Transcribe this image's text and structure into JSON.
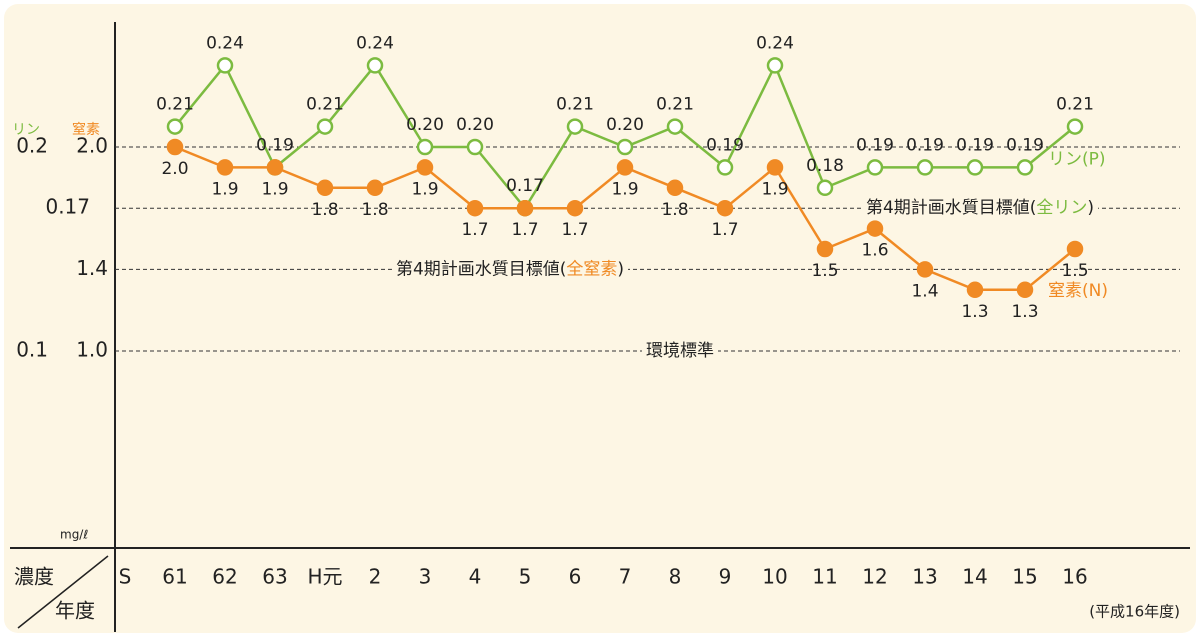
{
  "chart_data": {
    "type": "line",
    "y_axis_title": "窒素",
    "y2_axis_title": "リン",
    "unit": "mg/ℓ",
    "corner_top": "濃度",
    "corner_bottom": "年度",
    "footnote": "(平成16年度)",
    "categories": [
      "S",
      "61",
      "62",
      "63",
      "H元",
      "2",
      "3",
      "4",
      "5",
      "6",
      "7",
      "8",
      "9",
      "10",
      "11",
      "12",
      "13",
      "14",
      "15",
      "16"
    ],
    "ylim": [
      0,
      2.6
    ],
    "yticks": [
      {
        "value": 2,
        "label": "2.0"
      },
      1.4,
      {
        "value": 1,
        "label": "1.0"
      }
    ],
    "y2lim": [
      0,
      0.26
    ],
    "y2ticks": [
      0.2,
      0.17,
      0.1
    ],
    "grid": true,
    "series": [
      {
        "name": "リン(P)",
        "color": "#7cbb40",
        "axis": "y2",
        "values": [
          null,
          0.21,
          0.24,
          0.19,
          0.21,
          0.24,
          0.2,
          0.2,
          0.17,
          0.21,
          0.2,
          0.21,
          0.19,
          0.24,
          0.18,
          0.19,
          0.19,
          0.19,
          0.19,
          0.21
        ],
        "value_labels": [
          null,
          "0.21",
          "0.24",
          "0.19",
          "0.21",
          "0.24",
          "0.20",
          "0.20",
          "0.17",
          "0.21",
          "0.20",
          "0.21",
          "0.19",
          "0.24",
          "0.18",
          "0.19",
          "0.19",
          "0.19",
          "0.19",
          "0.21"
        ]
      },
      {
        "name": "窒素(N)",
        "color": "#f08a24",
        "values": [
          null,
          2,
          1.9,
          1.9,
          1.8,
          1.8,
          1.9,
          1.7,
          1.7,
          1.7,
          1.9,
          1.8,
          1.7,
          1.9,
          1.5,
          1.6,
          1.4,
          1.3,
          1.3,
          1.5
        ],
        "value_labels": [
          null,
          "2.0",
          "1.9",
          "1.9",
          "1.8",
          "1.8",
          "1.9",
          "1.7",
          "1.7",
          "1.7",
          "1.9",
          "1.8",
          "1.7",
          "1.9",
          "1.5",
          "1.6",
          "1.4",
          "1.3",
          "1.3",
          "1.5"
        ]
      }
    ],
    "annotations": [
      [
        "第4期計画水質目標値(",
        "全リン",
        ")"
      ],
      [
        "第4期計画水質目標値(",
        "全窒素",
        ")"
      ],
      [
        "環境標準"
      ]
    ]
  }
}
